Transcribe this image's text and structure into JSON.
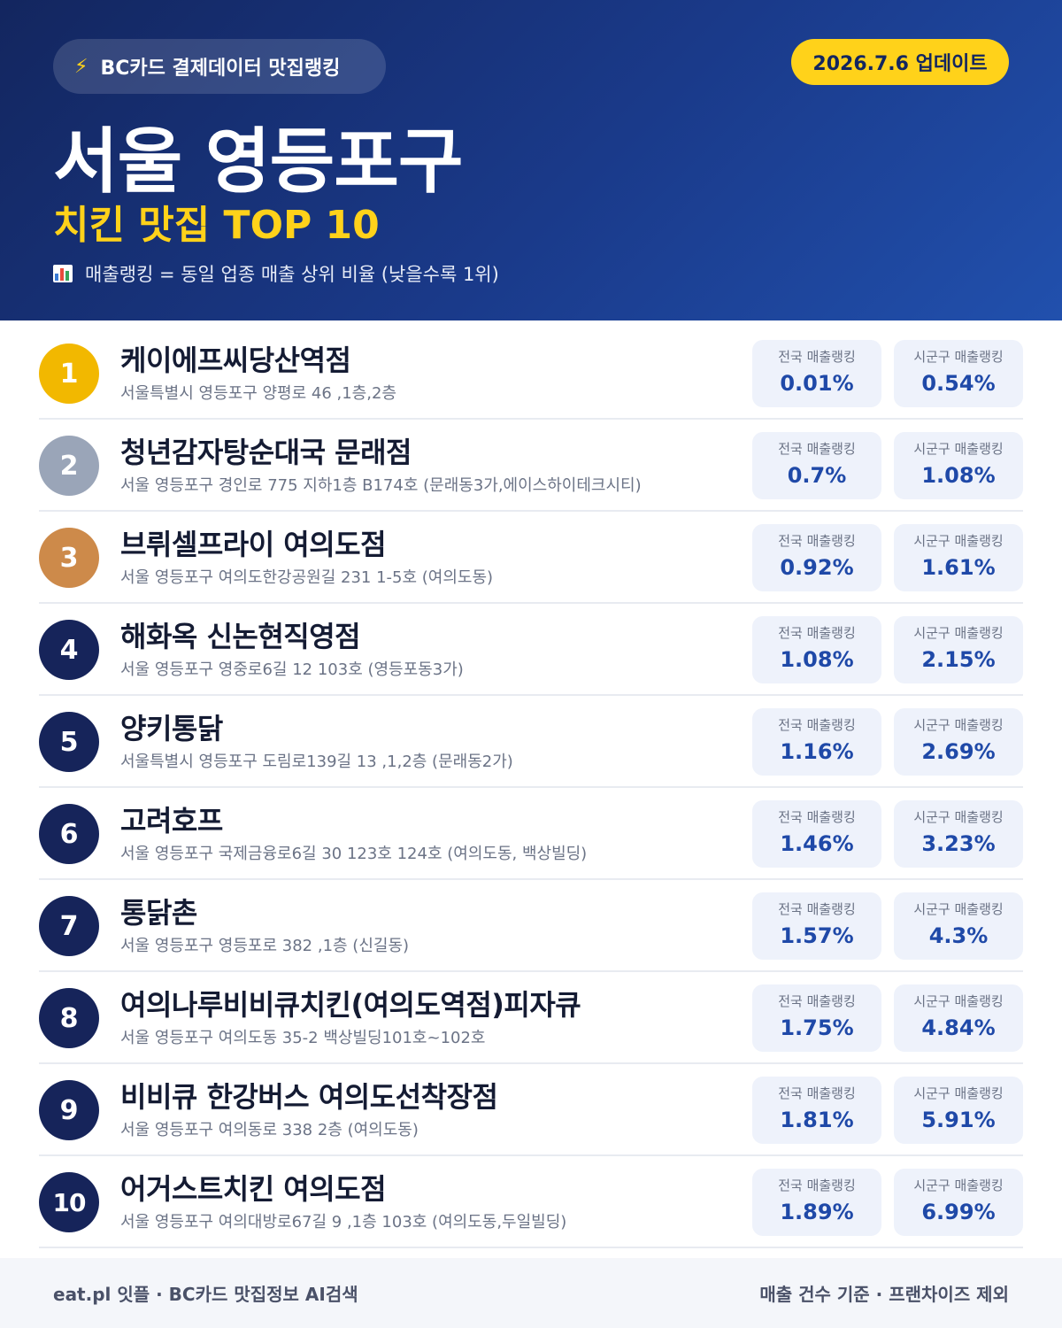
{
  "header": {
    "source_badge": "BC카드 결제데이터 맛집랭킹",
    "source_badge_icon": "lightning-icon",
    "update_badge": "2026.7.6 업데이트",
    "title": "서울 영등포구",
    "subtitle": "치킨 맛집 TOP 10",
    "legend_icon": "bar-chart-icon",
    "legend": "매출랭킹 = 동일 업종 매출 상위 비율 (낮을수록 1위)",
    "accent_color": "#ffd21a",
    "background_color": "#1a3a8a"
  },
  "labels": {
    "national": "전국 매출랭킹",
    "district": "시군구 매출랭킹"
  },
  "items": [
    {
      "rank": "1",
      "name": "케이에프씨당산역점",
      "address": "서울특별시 영등포구 양평로 46 ,1층,2층",
      "national": "0.01%",
      "district": "0.54%"
    },
    {
      "rank": "2",
      "name": "청년감자탕순대국 문래점",
      "address": "서울 영등포구 경인로 775 지하1층 B174호 (문래동3가,에이스하이테크시티)",
      "national": "0.7%",
      "district": "1.08%"
    },
    {
      "rank": "3",
      "name": "브뤼셀프라이 여의도점",
      "address": "서울 영등포구 여의도한강공원길 231 1-5호 (여의도동)",
      "national": "0.92%",
      "district": "1.61%"
    },
    {
      "rank": "4",
      "name": "해화옥 신논현직영점",
      "address": "서울 영등포구 영중로6길 12 103호 (영등포동3가)",
      "national": "1.08%",
      "district": "2.15%"
    },
    {
      "rank": "5",
      "name": "양키통닭",
      "address": "서울특별시 영등포구 도림로139길 13 ,1,2층 (문래동2가)",
      "national": "1.16%",
      "district": "2.69%"
    },
    {
      "rank": "6",
      "name": "고려호프",
      "address": "서울 영등포구 국제금융로6길 30 123호 124호 (여의도동, 백상빌딩)",
      "national": "1.46%",
      "district": "3.23%"
    },
    {
      "rank": "7",
      "name": "통닭촌",
      "address": "서울 영등포구 영등포로 382 ,1층 (신길동)",
      "national": "1.57%",
      "district": "4.3%"
    },
    {
      "rank": "8",
      "name": "여의나루비비큐치킨(여의도역점)피자큐",
      "address": "서울 영등포구 여의도동 35-2 백상빌딩101호~102호",
      "national": "1.75%",
      "district": "4.84%"
    },
    {
      "rank": "9",
      "name": "비비큐 한강버스 여의도선착장점",
      "address": "서울 영등포구 여의동로 338 2층 (여의도동)",
      "national": "1.81%",
      "district": "5.91%"
    },
    {
      "rank": "10",
      "name": "어거스트치킨 여의도점",
      "address": "서울 영등포구 여의대방로67길 9 ,1층 103호 (여의도동,두일빌딩)",
      "national": "1.89%",
      "district": "6.99%"
    }
  ],
  "footer": {
    "left": "eat.pl 잇플 · BC카드 맛집정보 AI검색",
    "right": "매출 건수 기준 · 프랜차이즈 제외"
  }
}
